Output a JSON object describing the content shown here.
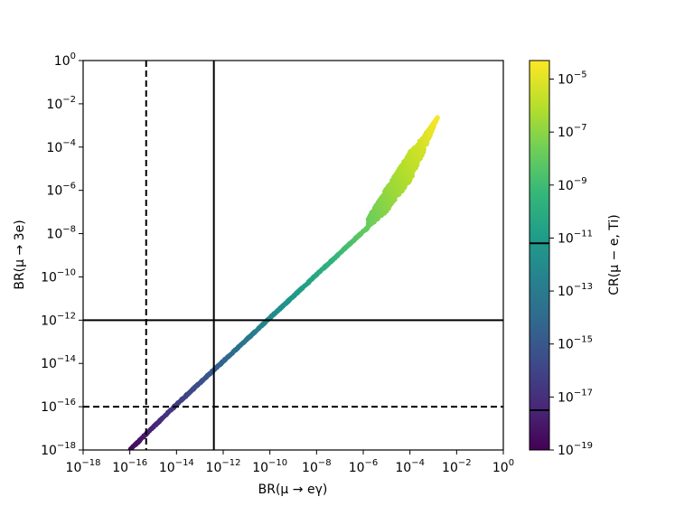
{
  "chart_data": {
    "type": "scatter",
    "title": "",
    "xlabel": "BR(μ → eγ)",
    "ylabel": "BR(μ → 3e)",
    "xscale": "log",
    "yscale": "log",
    "xlim": [
      "1e-18",
      "1e0"
    ],
    "ylim": [
      "1e-18",
      "1e0"
    ],
    "x_tick_labels": [
      "10^-18",
      "10^-16",
      "10^-14",
      "10^-12",
      "10^-10",
      "10^-8",
      "10^-6",
      "10^-4",
      "10^-2",
      "10^0"
    ],
    "y_tick_labels": [
      "10^-18",
      "10^-16",
      "10^-14",
      "10^-12",
      "10^-10",
      "10^-8",
      "10^-6",
      "10^-4",
      "10^-2",
      "10^0"
    ],
    "grid": false,
    "colorbar": {
      "label": "CR(μ − e, Ti)",
      "scale": "log",
      "colormap": "viridis",
      "range_log10": [
        -19,
        -4.3
      ],
      "tick_labels": [
        "10^-19",
        "10^-17",
        "10^-15",
        "10^-13",
        "10^-11",
        "10^-9",
        "10^-7",
        "10^-5"
      ],
      "marker_lines_log10": [
        -17.5,
        -11.2
      ]
    },
    "reference_lines": {
      "vertical_solid_log10_x": -12.4,
      "vertical_dashed_log10_x": -15.3,
      "horizontal_solid_log10_y": -12,
      "horizontal_dashed_log10_y": -16
    },
    "scatter_band": {
      "description_points_log10": [
        {
          "x": -16.0,
          "y": -18.0,
          "c": -18.7
        },
        {
          "x": -14.0,
          "y": -15.9,
          "c": -16.4
        },
        {
          "x": -12.0,
          "y": -13.9,
          "c": -14.3
        },
        {
          "x": -10.0,
          "y": -11.9,
          "c": -12.1
        },
        {
          "x": -8.0,
          "y": -9.9,
          "c": -10.2
        },
        {
          "x": -6.0,
          "y": -7.9,
          "c": -8.0
        },
        {
          "x": -5.0,
          "y": -7.0,
          "c": -7.0
        },
        {
          "x": -4.0,
          "y": -5.6,
          "c": -6.0
        },
        {
          "x": -3.4,
          "y": -4.2,
          "c": -5.3
        },
        {
          "x": -2.8,
          "y": -2.6,
          "c": -4.4
        }
      ],
      "upper_branch_points_log10": [
        {
          "x": -5.8,
          "y": -7.3
        },
        {
          "x": -5.2,
          "y": -6.2
        },
        {
          "x": -4.5,
          "y": -5.0
        },
        {
          "x": -4.0,
          "y": -4.2
        },
        {
          "x": -3.5,
          "y": -3.6
        },
        {
          "x": -2.8,
          "y": -2.6
        }
      ]
    },
    "colors": {
      "lines": "#000000",
      "viridis": [
        "#440154",
        "#482878",
        "#3e4989",
        "#31688e",
        "#26828e",
        "#1f9e89",
        "#35b779",
        "#6ece58",
        "#b5de2b",
        "#fde725"
      ]
    }
  }
}
